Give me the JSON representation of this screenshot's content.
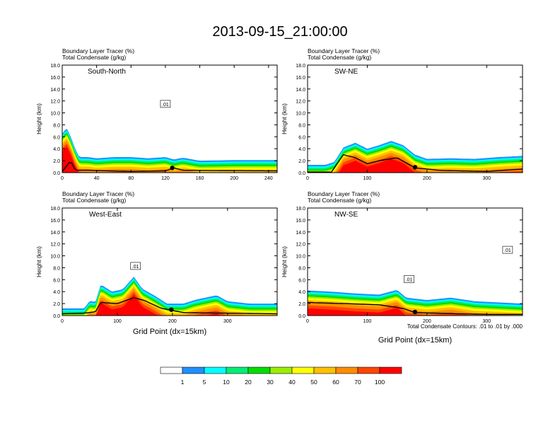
{
  "main_title": "2013-09-15_21:00:00",
  "subtitle_tracer": "Boundary Layer Tracer   (%)",
  "subtitle_condensate": "Total Condensate   (g/kg)",
  "y_axis_label": "Height (km)",
  "x_axis_label": "Grid Point (dx=15km)",
  "contour_note": "Total Condensate Contours: .01 to .01 by .000",
  "colorbar": {
    "labels": [
      "1",
      "5",
      "10",
      "20",
      "30",
      "40",
      "50",
      "60",
      "70",
      "100"
    ],
    "colors": [
      "#ffffff",
      "#1e90ff",
      "#00ffff",
      "#00ee76",
      "#00dd00",
      "#9aee00",
      "#ffff00",
      "#ffc000",
      "#ff8c00",
      "#ff4500",
      "#ff0000"
    ]
  },
  "chart_data": [
    {
      "type": "area",
      "panel_label": "South-North",
      "ylim": [
        0,
        18
      ],
      "yticks": [
        "0.0",
        "2.0",
        "4.0",
        "6.0",
        "8.0",
        "10.0",
        "12.0",
        "14.0",
        "16.0",
        "18.0"
      ],
      "xlim": [
        0,
        250
      ],
      "xticks": [
        0,
        40,
        80,
        120,
        160,
        200,
        240
      ],
      "contour_labels": [
        ".01"
      ],
      "contour_label_pos": [
        [
          120,
          11.5
        ]
      ],
      "tracer_top_km": [
        [
          0,
          6.5
        ],
        [
          5,
          7.5
        ],
        [
          10,
          6
        ],
        [
          15,
          4
        ],
        [
          20,
          2.6
        ],
        [
          30,
          2.6
        ],
        [
          40,
          2.4
        ],
        [
          60,
          2.6
        ],
        [
          80,
          2.6
        ],
        [
          100,
          2.4
        ],
        [
          120,
          2.6
        ],
        [
          130,
          2.2
        ],
        [
          140,
          2.5
        ],
        [
          160,
          2
        ],
        [
          200,
          2.1
        ],
        [
          250,
          2.1
        ]
      ],
      "terrain_km": [
        [
          0,
          0.2
        ],
        [
          10,
          2
        ],
        [
          15,
          0.4
        ],
        [
          30,
          0.4
        ],
        [
          80,
          0.2
        ],
        [
          120,
          0.3
        ],
        [
          130,
          0.8
        ],
        [
          140,
          0.4
        ],
        [
          250,
          0.3
        ]
      ],
      "marker_x": 128
    },
    {
      "type": "area",
      "panel_label": "SW-NE",
      "ylim": [
        0,
        18
      ],
      "yticks": [
        "0.0",
        "2.0",
        "4.0",
        "6.0",
        "8.0",
        "10.0",
        "12.0",
        "14.0",
        "16.0",
        "18.0"
      ],
      "xlim": [
        0,
        360
      ],
      "xticks": [
        0,
        100,
        200,
        300
      ],
      "contour_labels": [],
      "contour_label_pos": [],
      "tracer_top_km": [
        [
          0,
          1.3
        ],
        [
          30,
          1.3
        ],
        [
          45,
          1.8
        ],
        [
          60,
          4.2
        ],
        [
          80,
          5
        ],
        [
          100,
          4
        ],
        [
          120,
          4.6
        ],
        [
          140,
          5.3
        ],
        [
          160,
          4.6
        ],
        [
          180,
          3
        ],
        [
          200,
          2.3
        ],
        [
          240,
          2.4
        ],
        [
          280,
          2.3
        ],
        [
          320,
          2.6
        ],
        [
          360,
          2.8
        ]
      ],
      "terrain_km": [
        [
          0,
          0.1
        ],
        [
          40,
          0.1
        ],
        [
          60,
          3
        ],
        [
          80,
          2.5
        ],
        [
          100,
          1.5
        ],
        [
          120,
          2
        ],
        [
          150,
          2.5
        ],
        [
          180,
          0.8
        ],
        [
          220,
          0.4
        ],
        [
          300,
          0.2
        ],
        [
          360,
          0.6
        ]
      ],
      "marker_x": 180
    },
    {
      "type": "area",
      "panel_label": "West-East",
      "ylim": [
        0,
        18
      ],
      "yticks": [
        "0.0",
        "2.0",
        "4.0",
        "6.0",
        "8.0",
        "10.0",
        "12.0",
        "14.0",
        "16.0",
        "18.0"
      ],
      "xlim": [
        0,
        390
      ],
      "xticks": [
        0,
        100,
        200,
        300
      ],
      "contour_labels": [
        ".01"
      ],
      "contour_label_pos": [
        [
          133,
          8.3
        ]
      ],
      "tracer_top_km": [
        [
          0,
          1.2
        ],
        [
          40,
          1.2
        ],
        [
          50,
          2.5
        ],
        [
          60,
          2.2
        ],
        [
          70,
          5.2
        ],
        [
          90,
          4
        ],
        [
          110,
          4.4
        ],
        [
          130,
          6.5
        ],
        [
          145,
          4.5
        ],
        [
          170,
          3.2
        ],
        [
          190,
          2
        ],
        [
          220,
          2
        ],
        [
          240,
          2.6
        ],
        [
          280,
          3.4
        ],
        [
          300,
          2.4
        ],
        [
          340,
          2
        ],
        [
          390,
          2
        ]
      ],
      "terrain_km": [
        [
          0,
          0.3
        ],
        [
          40,
          0.4
        ],
        [
          60,
          0.6
        ],
        [
          70,
          2.2
        ],
        [
          100,
          2
        ],
        [
          130,
          3
        ],
        [
          150,
          2.5
        ],
        [
          180,
          1.2
        ],
        [
          220,
          0.5
        ],
        [
          300,
          0.4
        ],
        [
          390,
          0.3
        ]
      ],
      "marker_x": 198
    },
    {
      "type": "area",
      "panel_label": "NW-SE",
      "ylim": [
        0,
        18
      ],
      "yticks": [
        "0.0",
        "2.0",
        "4.0",
        "6.0",
        "8.0",
        "10.0",
        "12.0",
        "14.0",
        "16.0",
        "18.0"
      ],
      "xlim": [
        0,
        360
      ],
      "xticks": [
        0,
        100,
        200,
        300
      ],
      "contour_labels": [
        ".01",
        ".01"
      ],
      "contour_label_pos": [
        [
          170,
          6.1
        ],
        [
          335,
          11.0
        ]
      ],
      "tracer_top_km": [
        [
          0,
          4.2
        ],
        [
          40,
          4
        ],
        [
          80,
          3.7
        ],
        [
          120,
          3.5
        ],
        [
          150,
          4.3
        ],
        [
          165,
          3
        ],
        [
          200,
          2.6
        ],
        [
          240,
          3
        ],
        [
          280,
          2.4
        ],
        [
          320,
          2.2
        ],
        [
          360,
          2
        ]
      ],
      "terrain_km": [
        [
          0,
          2.2
        ],
        [
          60,
          2
        ],
        [
          120,
          1.8
        ],
        [
          160,
          1.2
        ],
        [
          180,
          0.5
        ],
        [
          250,
          0.3
        ],
        [
          300,
          0.2
        ],
        [
          360,
          0.2
        ]
      ],
      "marker_x": 180
    }
  ]
}
